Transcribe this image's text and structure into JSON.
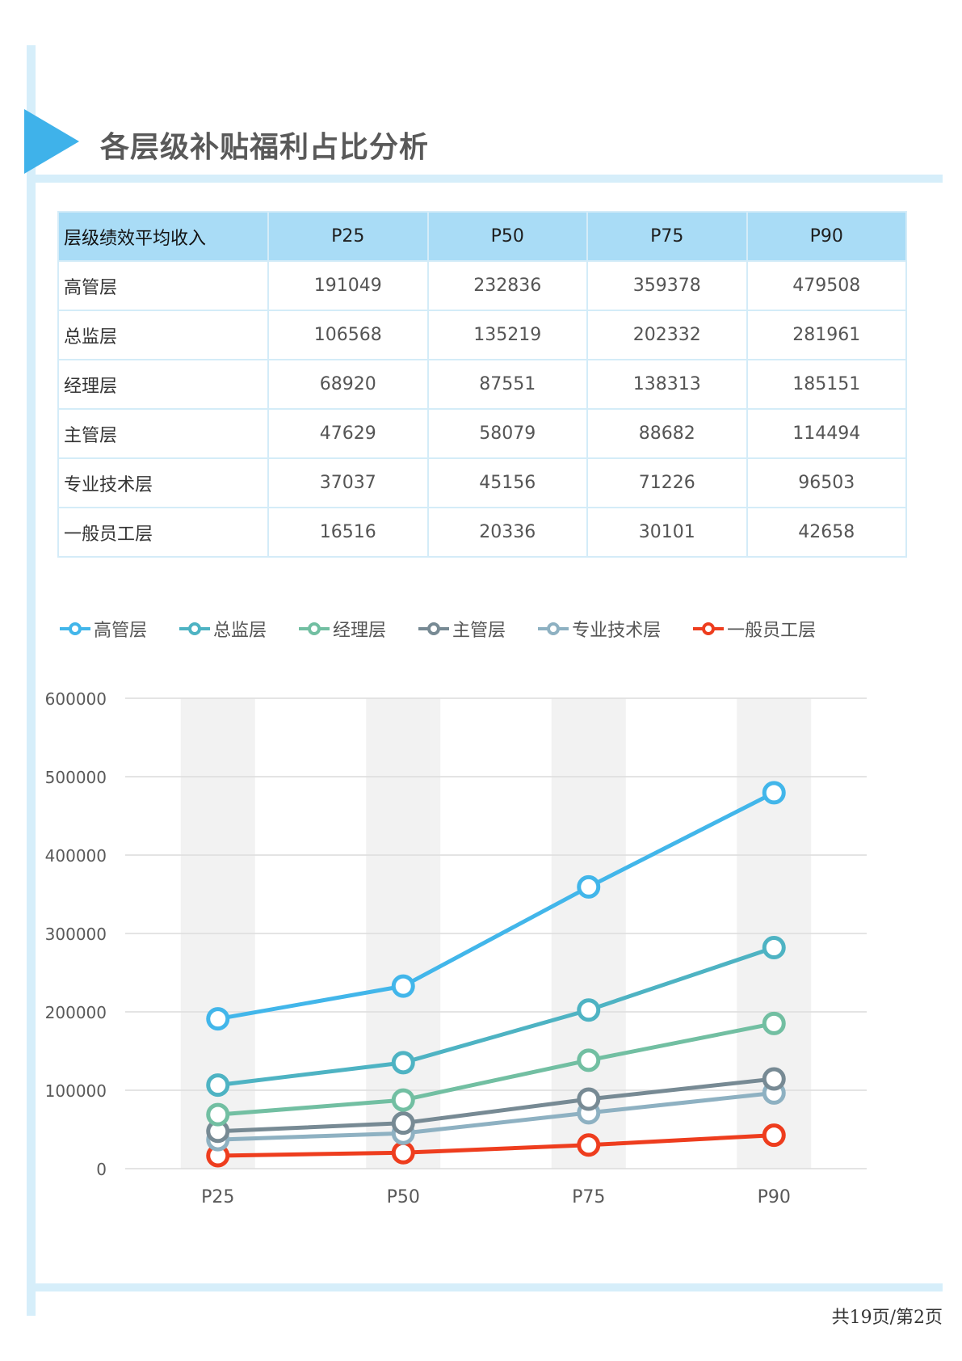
{
  "page": {
    "title": "各层级补贴福利占比分析",
    "page_number": "共19页/第2页"
  },
  "table": {
    "headers": [
      "层级绩效平均收入",
      "P25",
      "P50",
      "P75",
      "P90"
    ],
    "rows": [
      [
        "高管层",
        "191049",
        "232836",
        "359378",
        "479508"
      ],
      [
        "总监层",
        "106568",
        "135219",
        "202332",
        "281961"
      ],
      [
        "经理层",
        "68920",
        "87551",
        "138313",
        "185151"
      ],
      [
        "主管层",
        "47629",
        "58079",
        "88682",
        "114494"
      ],
      [
        "专业技术层",
        "37037",
        "45156",
        "71226",
        "96503"
      ],
      [
        "一般员工层",
        "16516",
        "20336",
        "30101",
        "42658"
      ]
    ]
  },
  "chart_data": {
    "type": "line",
    "title": "",
    "xlabel": "",
    "ylabel": "",
    "categories": [
      "P25",
      "P50",
      "P75",
      "P90"
    ],
    "ylim": [
      0,
      600000
    ],
    "yticks": [
      "0",
      "100000",
      "200000",
      "300000",
      "400000",
      "500000",
      "600000"
    ],
    "grid": true,
    "legend_position": "top",
    "series": [
      {
        "name": "高管层",
        "values": [
          191049,
          232836,
          359378,
          479508
        ],
        "color": "#42b6ea"
      },
      {
        "name": "总监层",
        "values": [
          106568,
          135219,
          202332,
          281961
        ],
        "color": "#4eb3c3"
      },
      {
        "name": "经理层",
        "values": [
          68920,
          87551,
          138313,
          185151
        ],
        "color": "#72bfa2"
      },
      {
        "name": "主管层",
        "values": [
          47629,
          58079,
          88682,
          114494
        ],
        "color": "#778a94"
      },
      {
        "name": "专业技术层",
        "values": [
          37037,
          45156,
          71226,
          96503
        ],
        "color": "#8eb1c2"
      },
      {
        "name": "一般员工层",
        "values": [
          16516,
          20336,
          30101,
          42658
        ],
        "color": "#ee3d1e"
      }
    ]
  }
}
